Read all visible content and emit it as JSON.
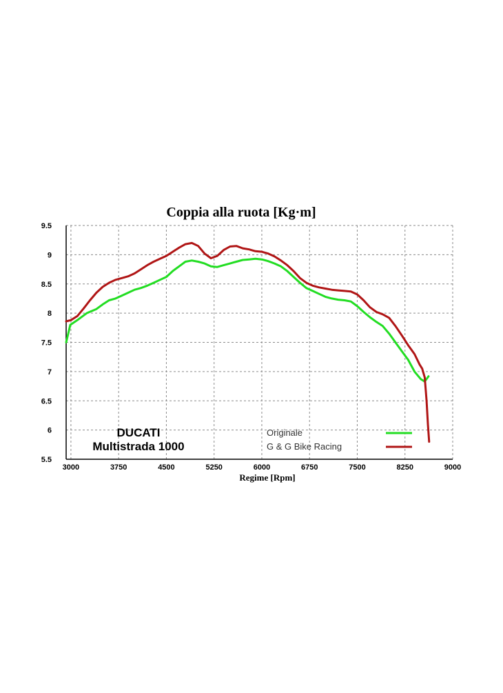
{
  "chart_data": {
    "type": "line",
    "title": "Coppia alla ruota  [Kg·m]",
    "xlabel": "Regime [Rpm]",
    "ylabel": "",
    "xlim": [
      2925,
      9000
    ],
    "ylim": [
      5.5,
      9.5
    ],
    "xticks": [
      3000,
      3750,
      4500,
      5250,
      6000,
      6750,
      7500,
      8250,
      9000
    ],
    "yticks": [
      5.5,
      6,
      6.5,
      7,
      7.5,
      8,
      8.5,
      9,
      9.5
    ],
    "ytick_labels": [
      "5.5",
      "6",
      "6.5",
      "7",
      "7.5",
      "8",
      "8.5",
      "9",
      "9.5"
    ],
    "grid": true,
    "legend_position": "bottom-right",
    "annotation": [
      "DUCATI",
      "Multistrada 1000"
    ],
    "colors": {
      "Originale": "#22dd22",
      "G & G Bike Racing": "#b01515"
    },
    "series": [
      {
        "name": "Originale",
        "x": [
          2925,
          2990,
          3100,
          3250,
          3400,
          3500,
          3600,
          3700,
          3800,
          3900,
          4000,
          4100,
          4200,
          4300,
          4400,
          4500,
          4600,
          4700,
          4800,
          4900,
          5000,
          5100,
          5200,
          5300,
          5400,
          5500,
          5600,
          5700,
          5800,
          5900,
          6000,
          6100,
          6200,
          6300,
          6400,
          6500,
          6600,
          6700,
          6800,
          6900,
          7000,
          7100,
          7200,
          7300,
          7400,
          7500,
          7600,
          7700,
          7800,
          7900,
          8000,
          8100,
          8200,
          8300,
          8400,
          8500,
          8560,
          8620
        ],
        "y": [
          7.5,
          7.8,
          7.88,
          8.0,
          8.07,
          8.15,
          8.22,
          8.25,
          8.3,
          8.35,
          8.4,
          8.43,
          8.47,
          8.52,
          8.57,
          8.62,
          8.72,
          8.8,
          8.88,
          8.9,
          8.88,
          8.85,
          8.8,
          8.79,
          8.82,
          8.85,
          8.88,
          8.91,
          8.92,
          8.93,
          8.92,
          8.89,
          8.85,
          8.8,
          8.72,
          8.62,
          8.52,
          8.43,
          8.38,
          8.33,
          8.28,
          8.25,
          8.23,
          8.22,
          8.2,
          8.12,
          8.02,
          7.93,
          7.85,
          7.78,
          7.65,
          7.5,
          7.35,
          7.2,
          7.0,
          6.87,
          6.83,
          6.92
        ]
      },
      {
        "name": "G & G Bike Racing",
        "x": [
          2925,
          3000,
          3100,
          3200,
          3300,
          3400,
          3500,
          3600,
          3700,
          3800,
          3900,
          4000,
          4100,
          4200,
          4300,
          4400,
          4500,
          4600,
          4700,
          4800,
          4900,
          5000,
          5100,
          5200,
          5300,
          5400,
          5500,
          5600,
          5700,
          5800,
          5900,
          6000,
          6100,
          6200,
          6300,
          6400,
          6500,
          6600,
          6700,
          6800,
          6900,
          7000,
          7100,
          7200,
          7300,
          7400,
          7500,
          7600,
          7700,
          7800,
          7900,
          8000,
          8100,
          8200,
          8300,
          8400,
          8480,
          8520,
          8560,
          8590,
          8610,
          8630
        ],
        "y": [
          7.86,
          7.88,
          7.95,
          8.08,
          8.22,
          8.35,
          8.45,
          8.52,
          8.57,
          8.6,
          8.63,
          8.68,
          8.75,
          8.82,
          8.88,
          8.93,
          8.98,
          9.05,
          9.12,
          9.18,
          9.2,
          9.15,
          9.02,
          8.94,
          8.98,
          9.08,
          9.14,
          9.15,
          9.11,
          9.09,
          9.06,
          9.05,
          9.02,
          8.97,
          8.9,
          8.82,
          8.72,
          8.6,
          8.52,
          8.47,
          8.44,
          8.42,
          8.4,
          8.39,
          8.38,
          8.37,
          8.32,
          8.22,
          8.1,
          8.02,
          7.98,
          7.92,
          7.78,
          7.62,
          7.45,
          7.3,
          7.12,
          7.05,
          6.9,
          6.5,
          6.1,
          5.8
        ]
      }
    ]
  }
}
